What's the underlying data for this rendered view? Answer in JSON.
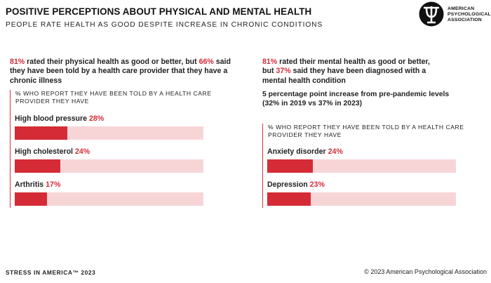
{
  "header": {
    "title": "POSITIVE PERCEPTIONS ABOUT PHYSICAL AND MENTAL HEALTH",
    "subtitle": "PEOPLE RATE HEALTH AS GOOD DESPITE INCREASE IN CHRONIC CONDITIONS"
  },
  "logo": {
    "icon": "psi-icon",
    "lines": [
      "AMERICAN",
      "PSYCHOLOGICAL",
      "ASSOCIATION"
    ]
  },
  "physical": {
    "stat": {
      "pct1": "81%",
      "line1a": " rated their physical health as good or better, but ",
      "pct2": "66%",
      "line1b": " said",
      "line2": "they have been told by a health care provider that they have a",
      "line3": "chronic illness"
    }
  },
  "mental": {
    "stat": {
      "pct1": "81%",
      "line1": " rated their mental health as good or better,",
      "line2a": "but ",
      "pct2": "37%",
      "line2b": " said they have been diagnosed with a",
      "line3": "mental health condition"
    },
    "note": {
      "line1": "5 percentage point increase from pre-pandemic levels",
      "line2": "(32% in 2019 vs 37% in 2023)"
    }
  },
  "colors": {
    "accent": "#d52b36",
    "track": "#f7d5d7"
  },
  "chart_data": [
    {
      "type": "bar",
      "orientation": "horizontal",
      "caption_lines": [
        "% WHO REPORT THEY HAVE BEEN TOLD BY A HEALTH CARE",
        "PROVIDER THEY HAVE"
      ],
      "categories": [
        "High blood pressure",
        "High cholesterol",
        "Arthritis"
      ],
      "values": [
        28,
        24,
        17
      ],
      "value_labels": [
        "28%",
        "24%",
        "17%"
      ],
      "xlim": [
        0,
        100
      ]
    },
    {
      "type": "bar",
      "orientation": "horizontal",
      "caption_lines": [
        "% WHO REPORT THEY HAVE BEEN TOLD BY A HEALTH CARE",
        "PROVIDER THEY HAVE"
      ],
      "categories": [
        "Anxiety disorder",
        "Depression"
      ],
      "values": [
        24,
        23
      ],
      "value_labels": [
        "24%",
        "23%"
      ],
      "xlim": [
        0,
        100
      ]
    }
  ],
  "footer": {
    "left": "STRESS IN AMERICA™ 2023",
    "right": "© 2023 American Psychological Association"
  }
}
